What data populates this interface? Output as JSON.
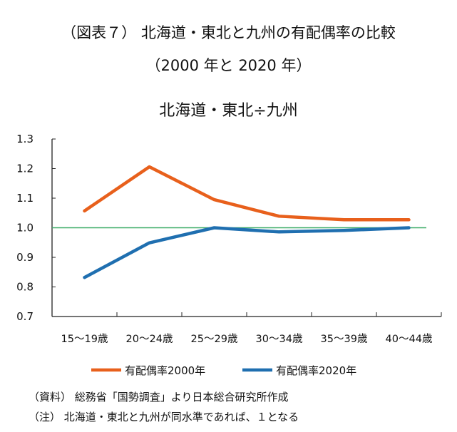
{
  "chart_data": {
    "type": "line",
    "title": "（図表７） 北海道・東北と九州の有配偶率の比較",
    "subtitle": "（2000 年と 2020 年）",
    "panel_title": "北海道・東北÷九州",
    "xlabel": "",
    "ylabel": "",
    "categories": [
      "15～19歳",
      "20～24歳",
      "25～29歳",
      "30～34歳",
      "35～39歳",
      "40～44歳"
    ],
    "ylim": [
      0.7,
      1.3
    ],
    "yticks": [
      "0.7",
      "0.8",
      "0.9",
      "1.0",
      "1.1",
      "1.2",
      "1.3"
    ],
    "reference_line": 1.0,
    "grid": false,
    "legend_position": "bottom",
    "series": [
      {
        "name": "有配偶率2000年",
        "color": "#e8601c",
        "values": [
          1.057,
          1.206,
          1.095,
          1.039,
          1.027,
          1.027
        ]
      },
      {
        "name": "有配偶率2020年",
        "color": "#1f6fb0",
        "values": [
          0.832,
          0.949,
          1.0,
          0.986,
          0.991,
          1.0
        ]
      }
    ],
    "reference_color": "#3aaa66"
  },
  "notes": {
    "source": "（資料） 総務省「国勢調査」より日本総合研究所作成",
    "note": "（注） 北海道・東北と九州が同水準であれば、１となる"
  }
}
